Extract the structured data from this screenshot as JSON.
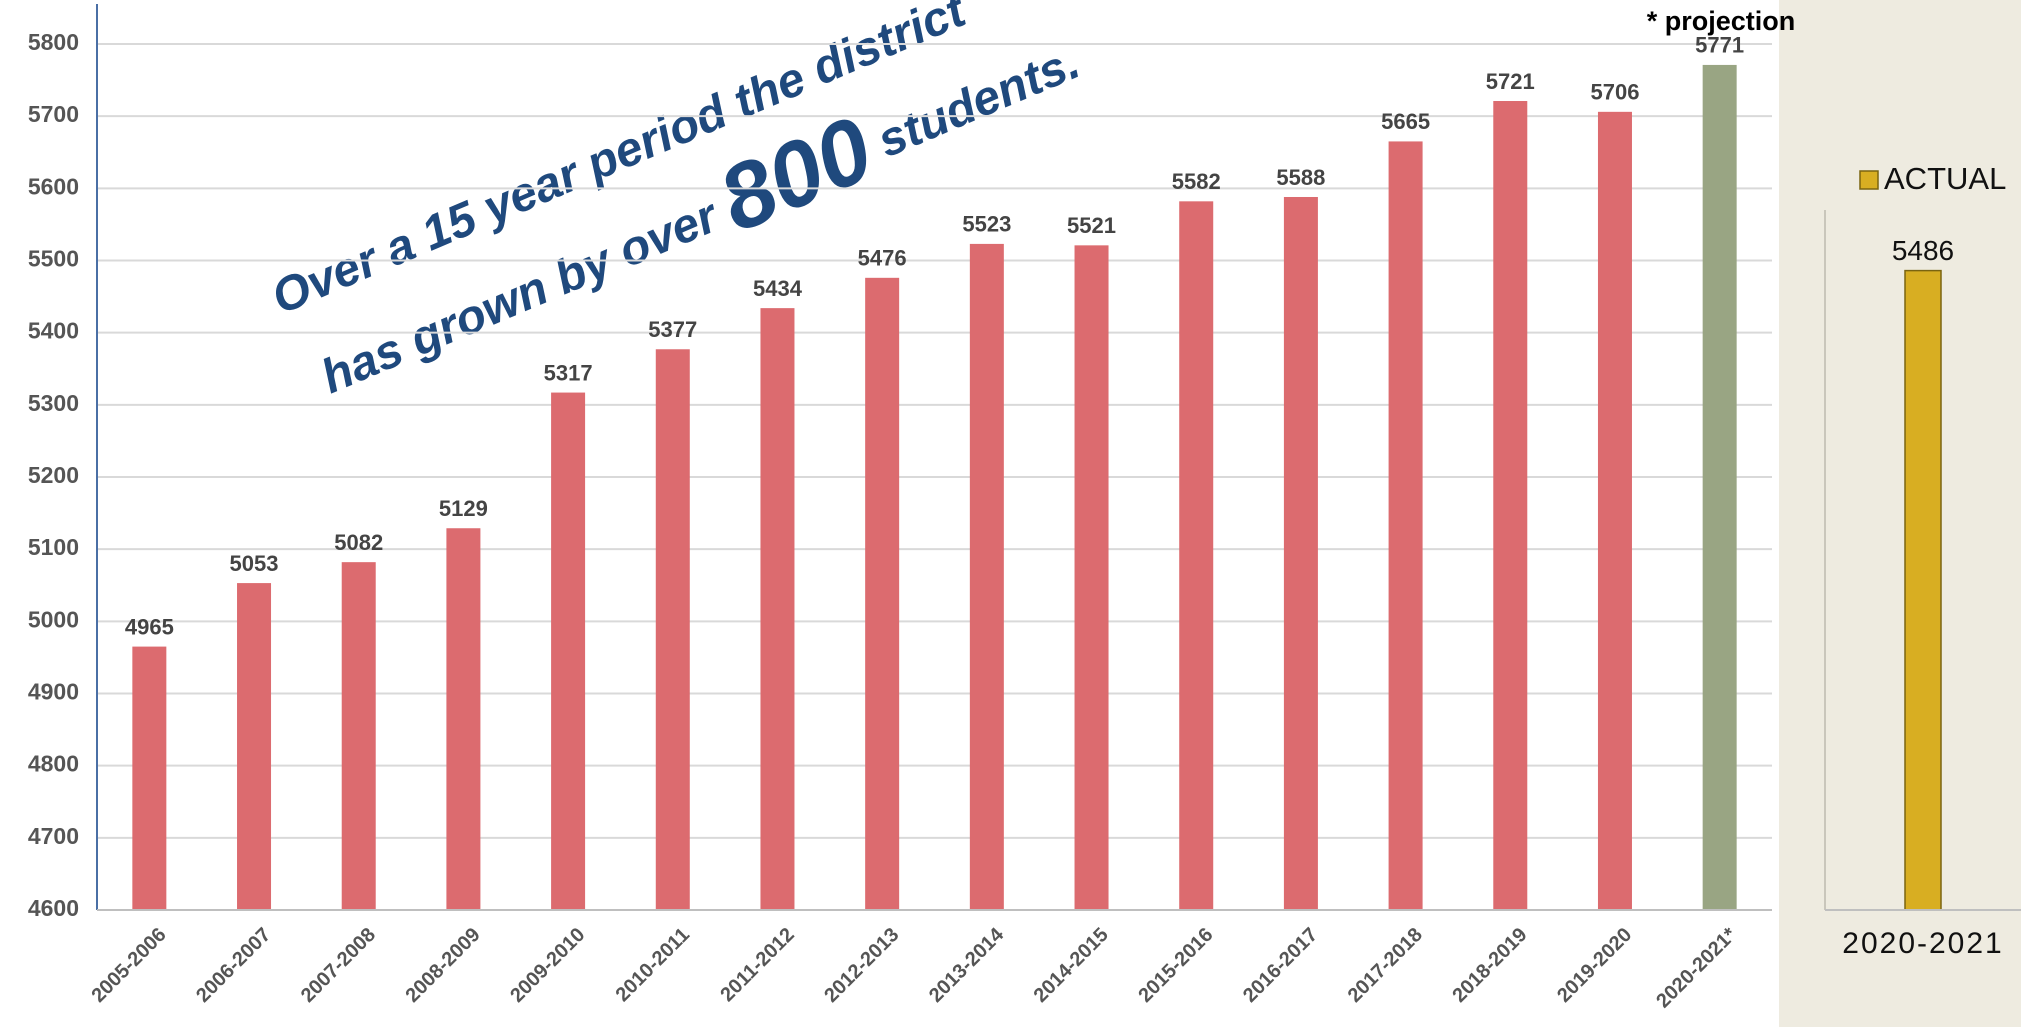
{
  "chart_data": [
    {
      "type": "bar",
      "categories": [
        "2005-2006",
        "2006-2007",
        "2007-2008",
        "2008-2009",
        "2009-2010",
        "2010-2011",
        "2011-2012",
        "2012-2013",
        "2013-2014",
        "2014-2015",
        "2015-2016",
        "2016-2017",
        "2017-2018",
        "2018-2019",
        "2019-2020",
        "2020-2021*"
      ],
      "values": [
        4965,
        5053,
        5082,
        5129,
        5317,
        5377,
        5434,
        5476,
        5523,
        5521,
        5582,
        5588,
        5665,
        5721,
        5706,
        5771
      ],
      "colors": [
        "#dc6b6f",
        "#dc6b6f",
        "#dc6b6f",
        "#dc6b6f",
        "#dc6b6f",
        "#dc6b6f",
        "#dc6b6f",
        "#dc6b6f",
        "#dc6b6f",
        "#dc6b6f",
        "#dc6b6f",
        "#dc6b6f",
        "#dc6b6f",
        "#dc6b6f",
        "#dc6b6f",
        "#99a583"
      ],
      "ylim": [
        4600,
        5800
      ],
      "yticks": [
        4600,
        4700,
        4800,
        4900,
        5000,
        5100,
        5200,
        5300,
        5400,
        5500,
        5600,
        5700,
        5800
      ],
      "grid": true,
      "annotations": [
        "Over a 15 year period the district",
        "has grown by over",
        "800",
        "students.",
        "* projection"
      ]
    },
    {
      "type": "bar",
      "categories": [
        "2020-2021"
      ],
      "series": [
        {
          "name": "ACTUAL",
          "color": "#d8ae22",
          "values": [
            5486
          ]
        }
      ],
      "ylim": [
        4600,
        5800
      ]
    }
  ]
}
